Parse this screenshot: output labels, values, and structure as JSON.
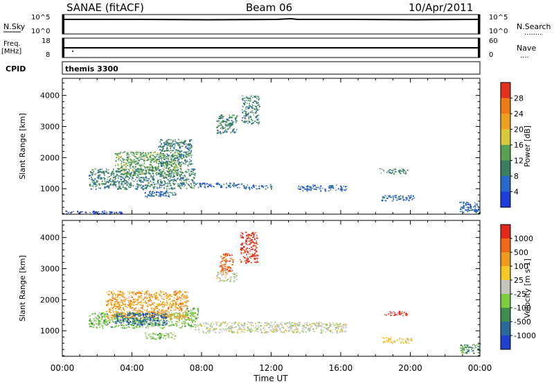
{
  "header": {
    "station": "SANAE (fitACF)",
    "beam": "Beam 06",
    "date": "10/Apr/2011"
  },
  "noise_panel": {
    "left_label": "N.Sky",
    "right_label": "N.Search",
    "right_line": "........",
    "left_ticks": [
      "10^5",
      "10^0"
    ],
    "right_ticks": [
      "10^5",
      "10^0"
    ]
  },
  "freq_panel": {
    "left_label_1": "Freq.",
    "left_label_2": "[MHz]",
    "right_label": "Nave",
    "right_line": "....",
    "left_ticks": [
      "18",
      "8"
    ],
    "right_ticks": [
      "60",
      "0"
    ]
  },
  "cpid_panel": {
    "label": "CPID",
    "value": "themis 3300"
  },
  "x_axis": {
    "label": "Time UT",
    "ticks": [
      "00:00",
      "04:00",
      "08:00",
      "12:00",
      "16:00",
      "20:00",
      "00:00"
    ]
  },
  "colors": {
    "power": [
      "#1e3cd8",
      "#2868c8",
      "#3a7e62",
      "#58a054",
      "#d8c83a",
      "#f0a020",
      "#ef7a18",
      "#e0321c"
    ],
    "velocity": [
      "#1f3fcc",
      "#2a6a9a",
      "#3e8c50",
      "#7ccc40",
      "#c4c4bc",
      "#f0c828",
      "#ef9a1e",
      "#ef6a18",
      "#e0281c"
    ]
  },
  "chart_data": [
    {
      "type": "heatmap",
      "title": "",
      "xlabel": "Time UT",
      "ylabel": "Slant Range [km]",
      "xlim": [
        "00:00",
        "24:00"
      ],
      "ylim": [
        180,
        4550
      ],
      "y_ticks": [
        "1000",
        "2000",
        "3000",
        "4000"
      ],
      "colorbar": {
        "label": "Power [dB]",
        "ticks": [
          "4",
          "8",
          "12",
          "16",
          "20",
          "24",
          "28"
        ],
        "range": [
          0,
          32
        ]
      },
      "patches": [
        {
          "t0": 1.5,
          "t1": 7.6,
          "r0": 1000,
          "r1": 1650,
          "level": 2
        },
        {
          "t0": 3.0,
          "t1": 6.8,
          "r0": 1450,
          "r1": 2200,
          "level": 3
        },
        {
          "t0": 5.5,
          "t1": 7.4,
          "r0": 1750,
          "r1": 2600,
          "level": 2
        },
        {
          "t0": 4.7,
          "t1": 6.5,
          "r0": 750,
          "r1": 950,
          "level": 1
        },
        {
          "t0": 7.6,
          "t1": 10.3,
          "r0": 1050,
          "r1": 1200,
          "level": 1
        },
        {
          "t0": 10.3,
          "t1": 12.0,
          "r0": 1000,
          "r1": 1150,
          "level": 1
        },
        {
          "t0": 13.5,
          "t1": 16.3,
          "r0": 950,
          "r1": 1130,
          "level": 1
        },
        {
          "t0": 8.8,
          "t1": 10.0,
          "r0": 2800,
          "r1": 3400,
          "level": 2
        },
        {
          "t0": 10.3,
          "t1": 11.3,
          "r0": 3100,
          "r1": 4000,
          "level": 2
        },
        {
          "t0": 18.2,
          "t1": 19.8,
          "r0": 1500,
          "r1": 1650,
          "level": 2
        },
        {
          "t0": 18.3,
          "t1": 20.2,
          "r0": 620,
          "r1": 800,
          "level": 1
        },
        {
          "t0": 22.8,
          "t1": 24.0,
          "r0": 250,
          "r1": 600,
          "level": 1
        },
        {
          "t0": 0.0,
          "t1": 3.5,
          "r0": 200,
          "r1": 300,
          "level": 0
        }
      ]
    },
    {
      "type": "heatmap",
      "title": "",
      "xlabel": "Time UT",
      "ylabel": "Slant Range [km]",
      "xlim": [
        "00:00",
        "24:00"
      ],
      "ylim": [
        180,
        4550
      ],
      "y_ticks": [
        "1000",
        "2000",
        "3000",
        "4000"
      ],
      "colorbar": {
        "label": "Velocity [m s-1]",
        "ticks": [
          "1000",
          "500",
          "100",
          "25",
          "-25",
          "-100",
          "-500",
          "-1000"
        ]
      },
      "patches": [
        {
          "t0": 1.5,
          "t1": 7.6,
          "r0": 1100,
          "r1": 1600,
          "level": 3
        },
        {
          "t0": 2.5,
          "t1": 7.2,
          "r0": 1400,
          "r1": 2300,
          "level": 6
        },
        {
          "t0": 3.0,
          "t1": 6.0,
          "r0": 1200,
          "r1": 1600,
          "level": 1
        },
        {
          "t0": 4.7,
          "t1": 6.5,
          "r0": 750,
          "r1": 950,
          "level": 3
        },
        {
          "t0": 7.0,
          "t1": 7.8,
          "r0": 1400,
          "r1": 1750,
          "level": 3
        },
        {
          "t0": 7.6,
          "t1": 16.3,
          "r0": 950,
          "r1": 1300,
          "level": 4
        },
        {
          "t0": 9.0,
          "t1": 9.8,
          "r0": 2800,
          "r1": 3500,
          "level": 7
        },
        {
          "t0": 10.2,
          "t1": 11.2,
          "r0": 3200,
          "r1": 4200,
          "level": 8
        },
        {
          "t0": 8.8,
          "t1": 10.0,
          "r0": 2600,
          "r1": 2900,
          "level": 4
        },
        {
          "t0": 18.5,
          "t1": 19.8,
          "r0": 1500,
          "r1": 1650,
          "level": 8
        },
        {
          "t0": 18.3,
          "t1": 20.2,
          "r0": 620,
          "r1": 800,
          "level": 5
        },
        {
          "t0": 22.8,
          "t1": 24.0,
          "r0": 300,
          "r1": 600,
          "level": 2
        }
      ]
    }
  ]
}
